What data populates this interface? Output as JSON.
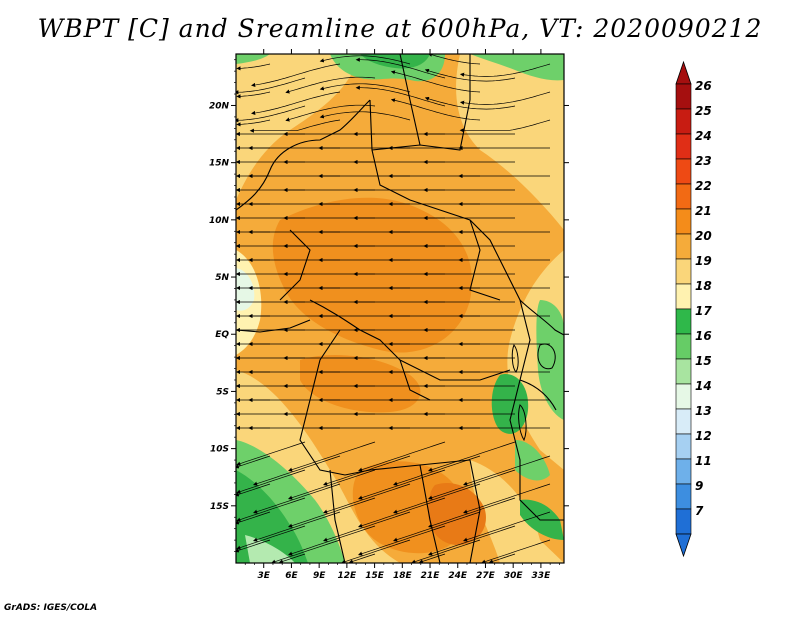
{
  "title": "WBPT [C] and Sreamline at 600hPa, VT: 2020090212",
  "credit": "GrADS: IGES/COLA",
  "map": {
    "lon_range": [
      0,
      35.5
    ],
    "lat_range": [
      -20,
      24.5
    ],
    "lat_ticks": [
      {
        "value": 20,
        "label": "20N"
      },
      {
        "value": 15,
        "label": "15N"
      },
      {
        "value": 10,
        "label": "10N"
      },
      {
        "value": 5,
        "label": "5N"
      },
      {
        "value": 0,
        "label": "EQ"
      },
      {
        "value": -5,
        "label": "5S"
      },
      {
        "value": -10,
        "label": "10S"
      },
      {
        "value": -15,
        "label": "15S"
      }
    ],
    "lon_ticks": [
      {
        "value": 3,
        "label": "3E"
      },
      {
        "value": 6,
        "label": "6E"
      },
      {
        "value": 9,
        "label": "9E"
      },
      {
        "value": 12,
        "label": "12E"
      },
      {
        "value": 15,
        "label": "15E"
      },
      {
        "value": 18,
        "label": "18E"
      },
      {
        "value": 21,
        "label": "21E"
      },
      {
        "value": 24,
        "label": "24E"
      },
      {
        "value": 27,
        "label": "27E"
      },
      {
        "value": 30,
        "label": "30E"
      },
      {
        "value": 33,
        "label": "33E"
      }
    ]
  },
  "colorbar": {
    "labels": [
      "26",
      "25",
      "24",
      "23",
      "22",
      "21",
      "20",
      "19",
      "18",
      "17",
      "16",
      "15",
      "14",
      "13",
      "12",
      "11",
      "9",
      "7"
    ],
    "colors": [
      "#a50f0f",
      "#c81c12",
      "#e02e16",
      "#ee4a14",
      "#f26a14",
      "#f48c1a",
      "#f5ab3a",
      "#fad67a",
      "#fff2b0",
      "#2fb84a",
      "#66cc66",
      "#a8e4a0",
      "#e6f8e6",
      "#d8ecf8",
      "#a6d0f2",
      "#6eb0ea",
      "#3d8ee0",
      "#1f6fd6"
    ]
  },
  "fields": {
    "palette": {
      "c17": "#34b34a",
      "c16": "#6ed06a",
      "c15": "#b4eab0",
      "c18": "#fff2b0",
      "c19": "#fad67a",
      "c20": "#f5ab3a",
      "c21": "#f0901e",
      "c22": "#e87a16"
    }
  }
}
